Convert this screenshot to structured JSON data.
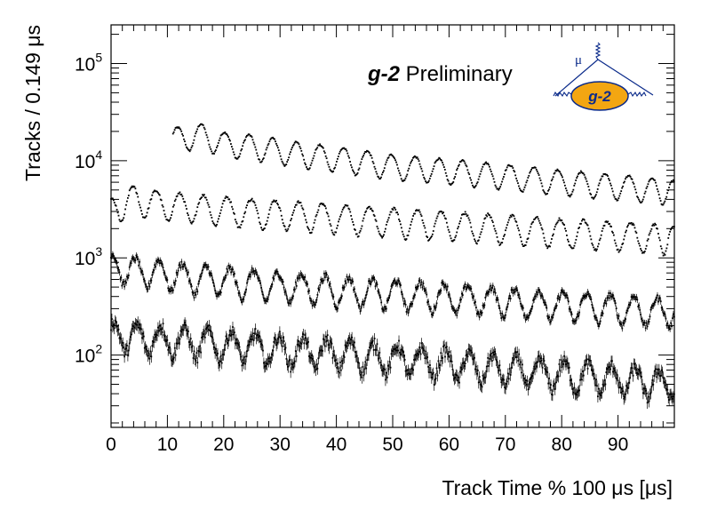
{
  "chart_data": {
    "type": "scatter",
    "title": "",
    "xlabel": "Track Time % 100 μs [μs]",
    "ylabel": "Tracks / 0.149 μs",
    "xlim": [
      0,
      100
    ],
    "ylim": [
      18,
      250000
    ],
    "yscale": "log",
    "x_ticks": [
      0,
      10,
      20,
      30,
      40,
      50,
      60,
      70,
      80,
      90
    ],
    "x_tick_labels": [
      "0",
      "10",
      "20",
      "30",
      "40",
      "50",
      "60",
      "70",
      "80",
      "90"
    ],
    "y_ticks": [
      {
        "value": 100,
        "base": "10",
        "exp": "2"
      },
      {
        "value": 1000,
        "base": "10",
        "exp": "3"
      },
      {
        "value": 10000,
        "base": "10",
        "exp": "4"
      },
      {
        "value": 100000,
        "base": "10",
        "exp": "5"
      }
    ],
    "grid": false,
    "annotation": {
      "bold": "g-2",
      "text": " Preliminary"
    },
    "logo": {
      "label": "g-2",
      "particle": "μ"
    },
    "series": [
      {
        "x_start": 11,
        "x_end": 100,
        "peaks": [
          [
            11.8,
            22000
          ],
          [
            16.0,
            24000
          ],
          [
            20.2,
            19500
          ],
          [
            24.5,
            18500
          ],
          [
            28.7,
            17000
          ],
          [
            32.9,
            15500
          ],
          [
            37.1,
            14500
          ],
          [
            41.3,
            13500
          ],
          [
            45.5,
            12500
          ],
          [
            49.8,
            11500
          ],
          [
            54.0,
            11000
          ],
          [
            58.2,
            10500
          ],
          [
            62.4,
            10000
          ],
          [
            66.6,
            9500
          ],
          [
            70.8,
            9000
          ],
          [
            75.1,
            8500
          ],
          [
            79.3,
            8000
          ],
          [
            83.5,
            7700
          ],
          [
            87.7,
            7300
          ],
          [
            91.9,
            7000
          ],
          [
            96.1,
            6600
          ],
          [
            99.8,
            6200
          ]
        ],
        "mod": 0.45,
        "noise": 0.012
      },
      {
        "x_start": 0,
        "x_end": 100,
        "peaks": [
          [
            0.0,
            4000
          ],
          [
            3.8,
            5500
          ],
          [
            8.0,
            4900
          ],
          [
            12.2,
            4600
          ],
          [
            16.4,
            4400
          ],
          [
            20.6,
            4200
          ],
          [
            24.9,
            4000
          ],
          [
            29.1,
            3900
          ],
          [
            33.3,
            3750
          ],
          [
            37.5,
            3600
          ],
          [
            41.7,
            3500
          ],
          [
            45.9,
            3300
          ],
          [
            50.2,
            3200
          ],
          [
            54.4,
            3100
          ],
          [
            58.6,
            3000
          ],
          [
            62.8,
            2900
          ],
          [
            67.0,
            2800
          ],
          [
            71.2,
            2700
          ],
          [
            75.5,
            2600
          ],
          [
            79.7,
            2500
          ],
          [
            83.9,
            2450
          ],
          [
            88.1,
            2350
          ],
          [
            92.3,
            2300
          ],
          [
            96.5,
            2200
          ],
          [
            99.8,
            2100
          ]
        ],
        "mod": 0.5,
        "noise": 0.02
      },
      {
        "x_start": 0,
        "x_end": 100,
        "peaks": [
          [
            0.2,
            1100
          ],
          [
            4.3,
            1000
          ],
          [
            8.5,
            950
          ],
          [
            12.7,
            870
          ],
          [
            16.9,
            820
          ],
          [
            21.1,
            780
          ],
          [
            25.3,
            740
          ],
          [
            29.6,
            700
          ],
          [
            33.8,
            680
          ],
          [
            38.0,
            650
          ],
          [
            42.2,
            620
          ],
          [
            46.4,
            600
          ],
          [
            50.6,
            580
          ],
          [
            54.9,
            560
          ],
          [
            59.1,
            540
          ],
          [
            63.3,
            520
          ],
          [
            67.5,
            500
          ],
          [
            71.7,
            480
          ],
          [
            75.9,
            460
          ],
          [
            80.2,
            445
          ],
          [
            84.4,
            430
          ],
          [
            88.6,
            415
          ],
          [
            92.8,
            400
          ],
          [
            97.0,
            385
          ]
        ],
        "mod": 0.5,
        "noise": 0.05
      },
      {
        "x_start": 0,
        "x_end": 100,
        "peaks": [
          [
            0.5,
            220
          ],
          [
            4.6,
            205
          ],
          [
            8.8,
            200
          ],
          [
            13.0,
            190
          ],
          [
            17.2,
            180
          ],
          [
            21.4,
            175
          ],
          [
            25.6,
            165
          ],
          [
            29.8,
            155
          ],
          [
            34.1,
            150
          ],
          [
            38.3,
            145
          ],
          [
            42.5,
            140
          ],
          [
            46.7,
            130
          ],
          [
            50.9,
            125
          ],
          [
            55.1,
            118
          ],
          [
            59.4,
            112
          ],
          [
            63.6,
            106
          ],
          [
            67.8,
            100
          ],
          [
            72.0,
            95
          ],
          [
            76.2,
            90
          ],
          [
            80.4,
            86
          ],
          [
            84.7,
            82
          ],
          [
            88.9,
            78
          ],
          [
            93.1,
            74
          ],
          [
            97.3,
            70
          ]
        ],
        "mod": 0.5,
        "noise": 0.09
      }
    ]
  }
}
